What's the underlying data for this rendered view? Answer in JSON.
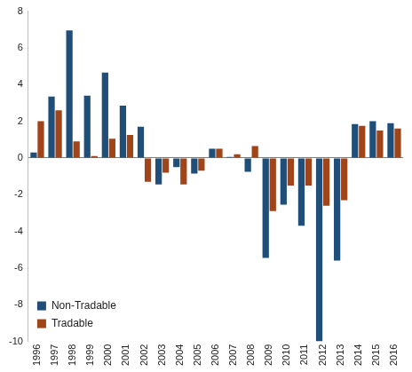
{
  "chart_data": {
    "type": "bar",
    "categories": [
      "1996",
      "1997",
      "1998",
      "1999",
      "2000",
      "2001",
      "2002",
      "2003",
      "2004",
      "2005",
      "2006",
      "2007",
      "2008",
      "2009",
      "2010",
      "2011",
      "2012",
      "2013",
      "2014",
      "2015",
      "2016"
    ],
    "series": [
      {
        "name": "Non-Tradable",
        "color": "#1f4e79",
        "values": [
          0.3,
          3.35,
          6.95,
          3.4,
          4.65,
          2.85,
          1.7,
          -1.45,
          -0.5,
          -0.85,
          0.5,
          0.05,
          -0.75,
          -5.45,
          -2.55,
          -3.7,
          -10.0,
          -5.6,
          1.85,
          2.0,
          1.9
        ]
      },
      {
        "name": "Tradable",
        "color": "#a0441a",
        "values": [
          2.0,
          2.6,
          0.9,
          0.1,
          1.05,
          1.25,
          -1.3,
          -0.8,
          -1.45,
          -0.7,
          0.5,
          0.2,
          0.65,
          -2.9,
          -1.5,
          -1.5,
          -2.6,
          -2.3,
          1.75,
          1.5,
          1.6
        ]
      }
    ],
    "ylim": [
      -10,
      8
    ],
    "yticks": [
      -10,
      -8,
      -6,
      -4,
      -2,
      0,
      2,
      4,
      6,
      8
    ],
    "grid": false,
    "legend": "lower left"
  }
}
